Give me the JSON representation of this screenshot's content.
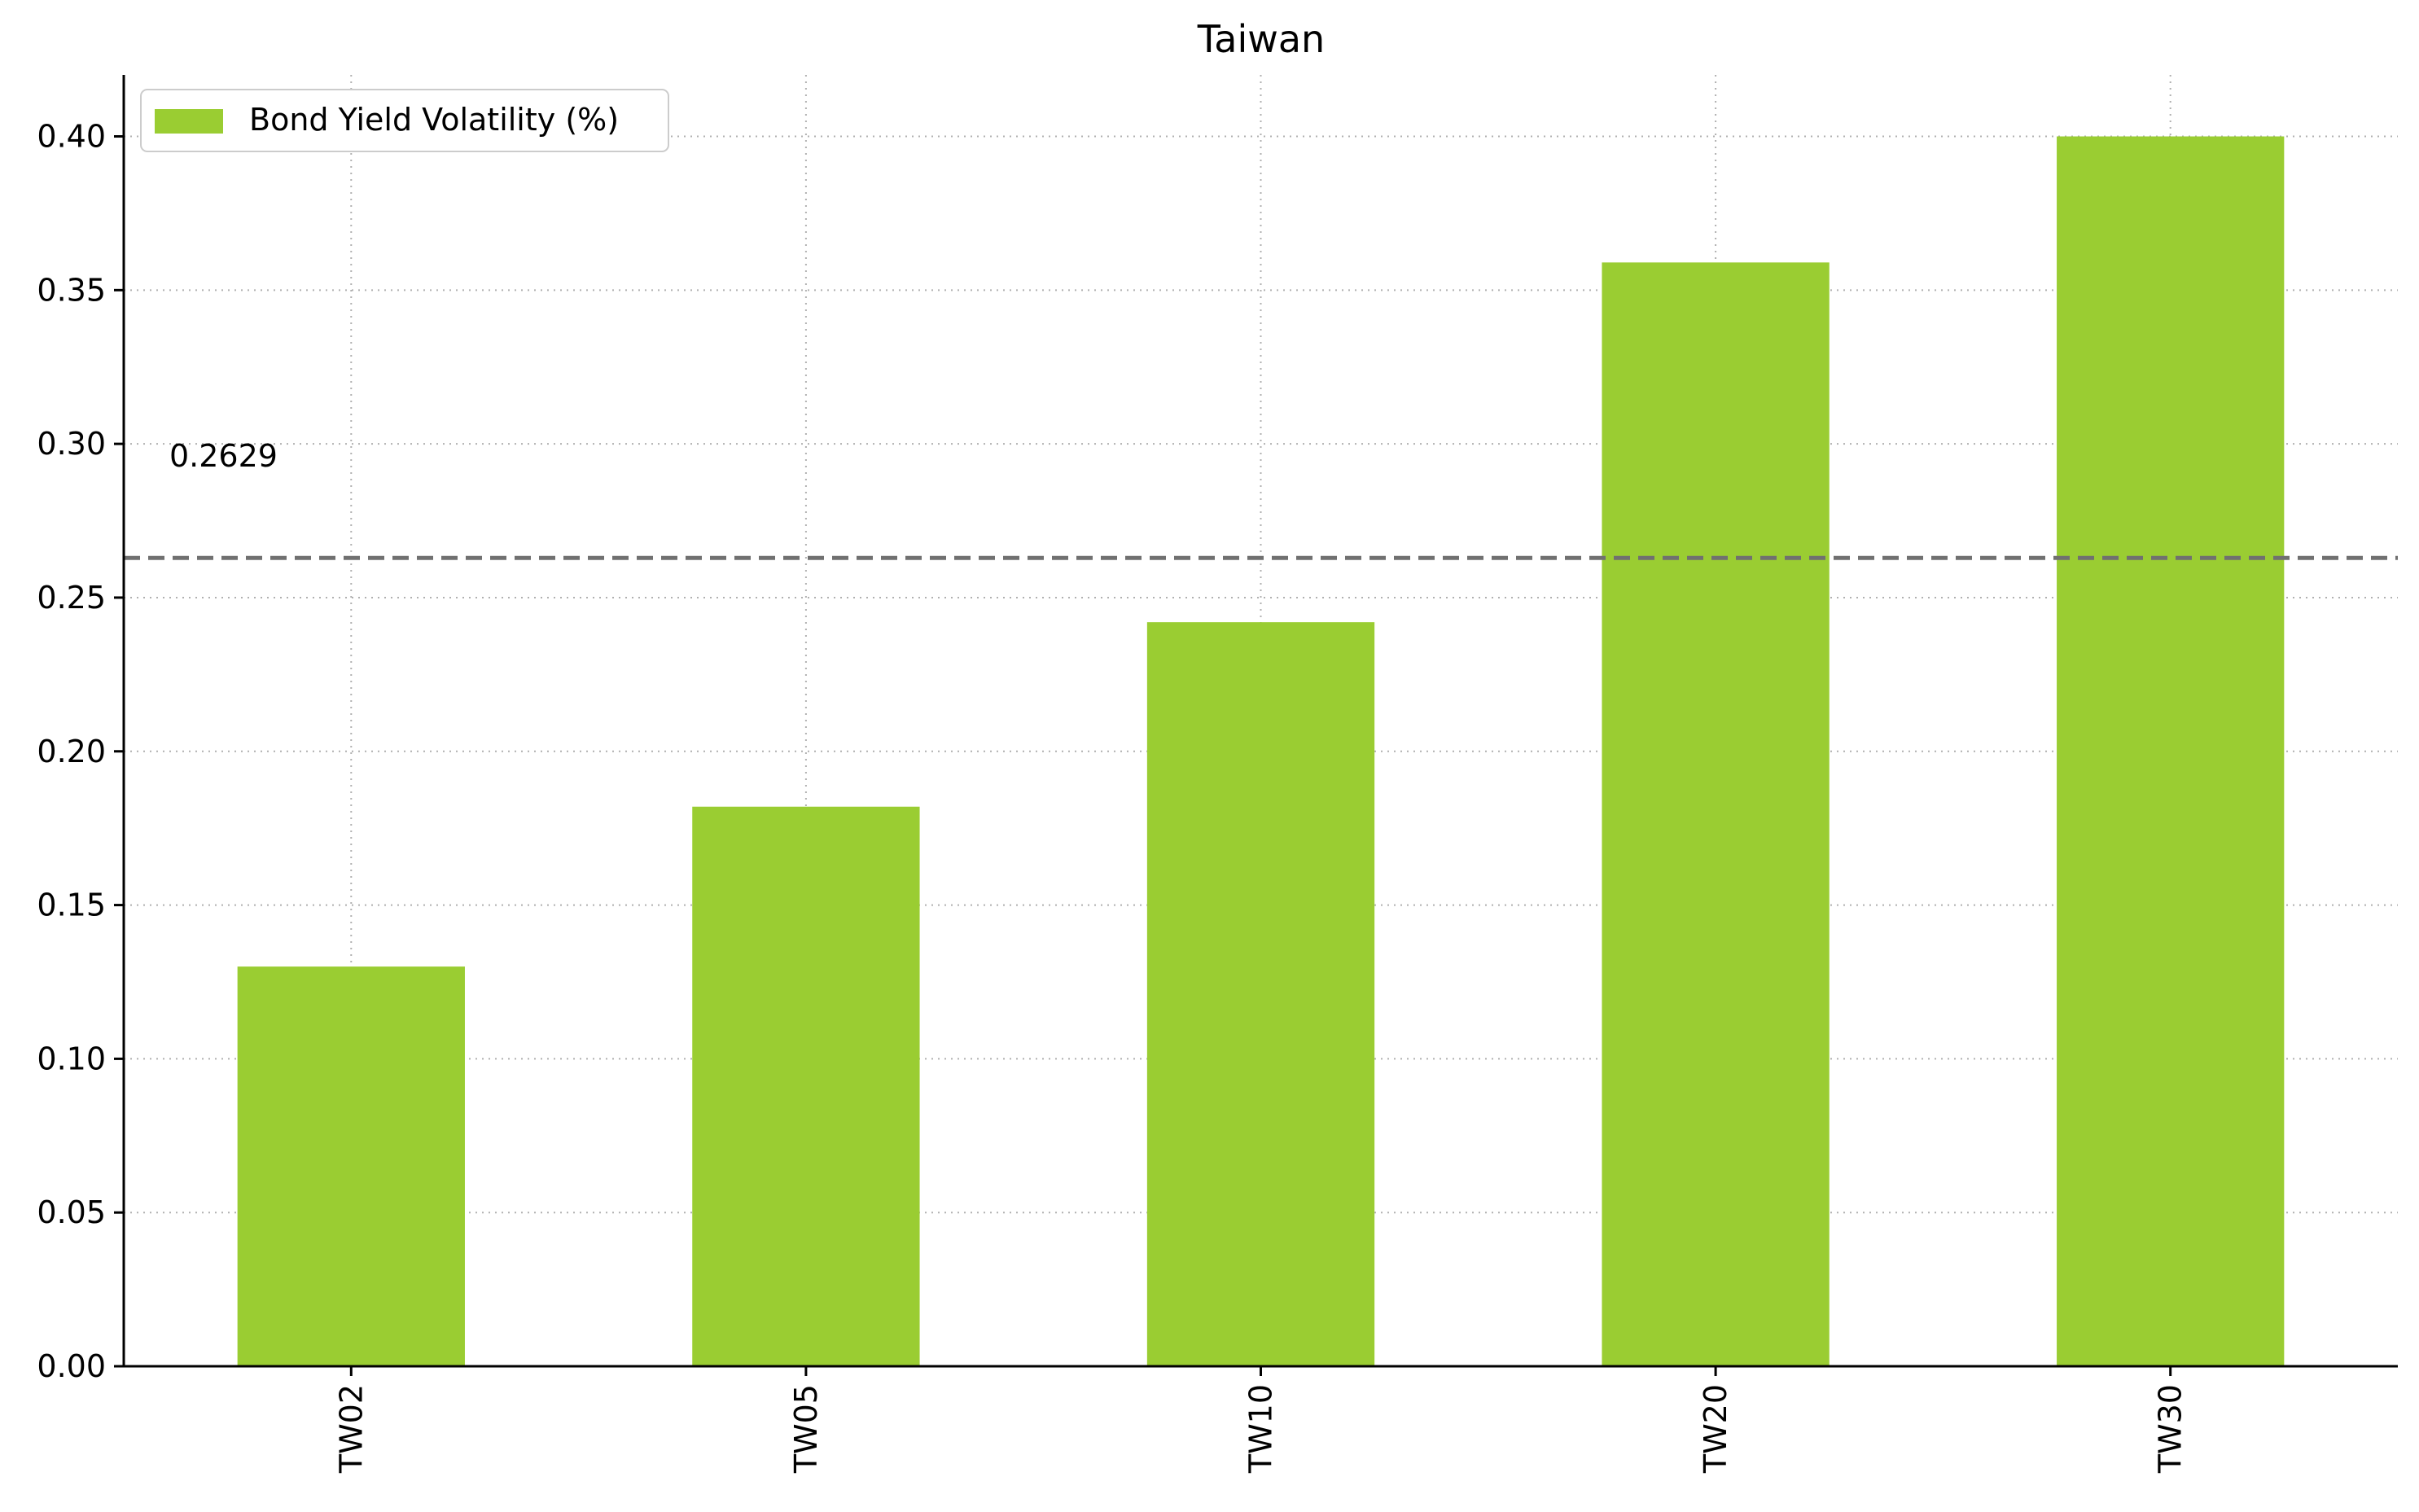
{
  "chart_data": {
    "type": "bar",
    "title": "Taiwan",
    "xlabel": "",
    "ylabel": "",
    "categories": [
      "TW02",
      "TW05",
      "TW10",
      "TW20",
      "TW30"
    ],
    "series": [
      {
        "name": "Bond Yield Volatility (%)",
        "values": [
          0.13,
          0.182,
          0.242,
          0.359,
          0.4
        ]
      }
    ],
    "ylim": [
      0,
      0.42
    ],
    "yticks": [
      "0.00",
      "0.05",
      "0.10",
      "0.15",
      "0.20",
      "0.25",
      "0.30",
      "0.35",
      "0.40"
    ],
    "grid": true,
    "legend_position": "top-left",
    "reference_line": {
      "value": 0.2629,
      "label": "0.2629",
      "style": "dashed"
    },
    "colors": {
      "bar": "#9acd32",
      "reference_line": "#707070",
      "grid": "#b0b0b0"
    }
  }
}
